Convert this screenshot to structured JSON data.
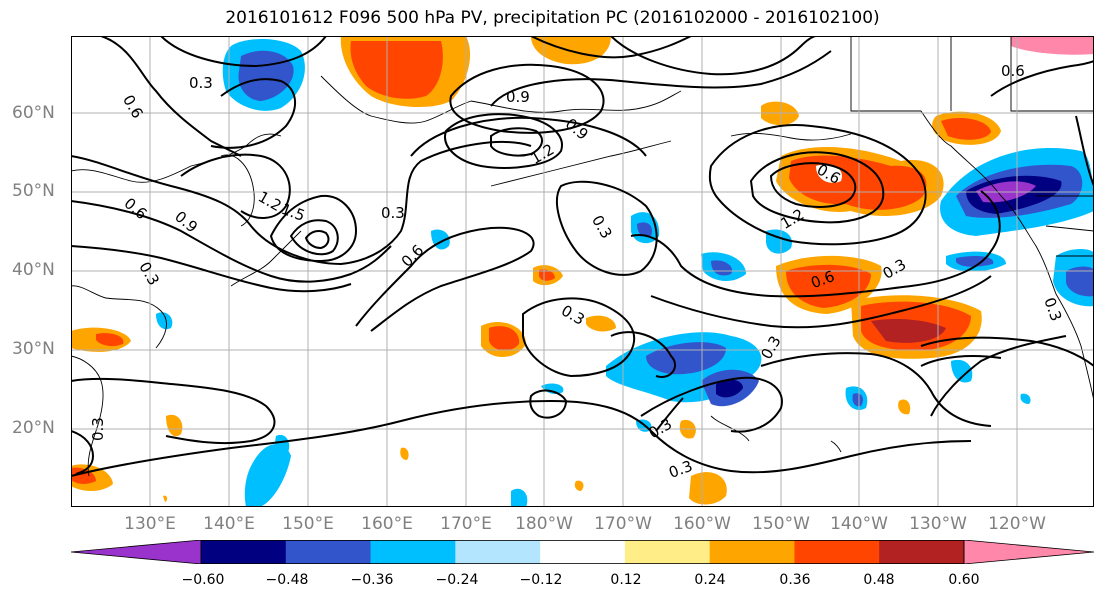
{
  "title": "2016101612 F096 500 hPa PV, precipitation PC (2016102000 - 2016102100)",
  "lat_labels": [
    "60°N",
    "50°N",
    "40°N",
    "30°N",
    "20°N"
  ],
  "lon_labels": [
    "130°E",
    "140°E",
    "150°E",
    "160°E",
    "170°E",
    "180°W",
    "170°W",
    "160°W",
    "150°W",
    "140°W",
    "130°W",
    "120°W"
  ],
  "colorbar": {
    "colors": [
      "#9933cc",
      "#000080",
      "#3355cc",
      "#00bfff",
      "#b3e5ff",
      "#ffffff",
      "#ffee88",
      "#ffa500",
      "#ff4500",
      "#b22222",
      "#ff88aa"
    ],
    "tick_labels": [
      "−0.60",
      "−0.48",
      "−0.36",
      "−0.24",
      "−0.12",
      "0.12",
      "0.24",
      "0.36",
      "0.48",
      "0.60"
    ]
  },
  "contour_labels": [
    "0.3",
    "0.6",
    "0.9",
    "1.2",
    "1.5",
    "0.9",
    "1.2",
    "0.3",
    "0.6",
    "0.9",
    "1.2",
    "0.6",
    "0.3",
    "0.3",
    "0.3",
    "0.3",
    "0.6",
    "0.3",
    "0.6",
    "0.3",
    "0.3",
    "0.6",
    "0.3",
    "0.3"
  ]
}
